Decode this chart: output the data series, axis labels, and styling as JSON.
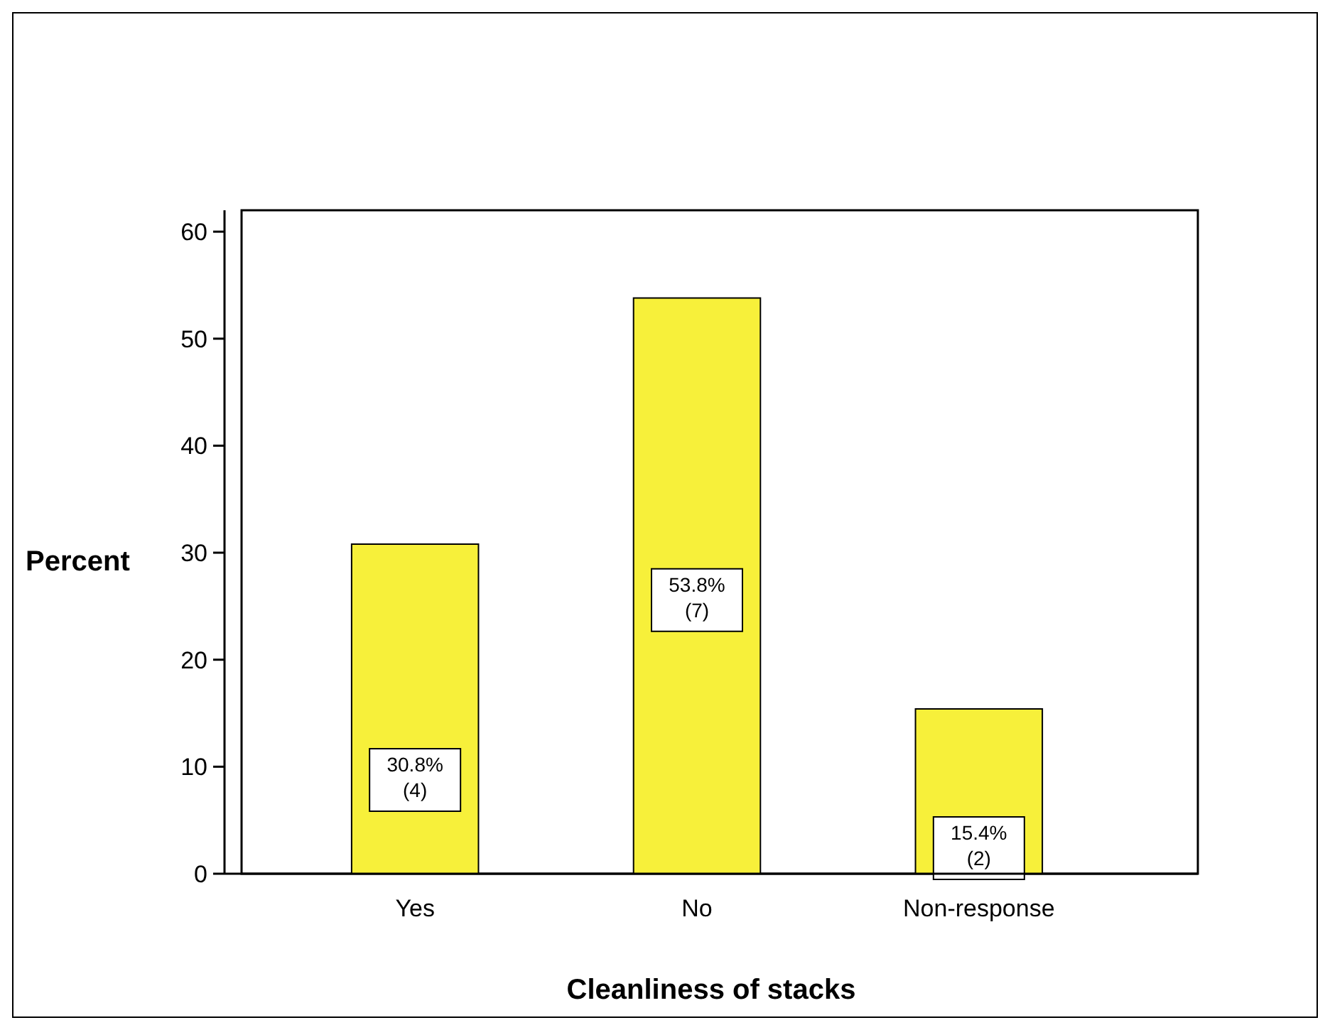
{
  "chart_data": {
    "type": "bar",
    "xlabel": "Cleanliness of stacks",
    "ylabel": "Percent",
    "categories": [
      "Yes",
      "No",
      "Non-response"
    ],
    "values": [
      30.8,
      53.8,
      15.4
    ],
    "value_labels": [
      "30.8%\n(4)",
      "53.8%\n(7)",
      "15.4%\n(2)"
    ],
    "color": "#f7f03a",
    "ylim": [
      0,
      62
    ],
    "yticks": [
      0,
      10,
      20,
      30,
      40,
      50,
      60
    ],
    "grid": false
  }
}
